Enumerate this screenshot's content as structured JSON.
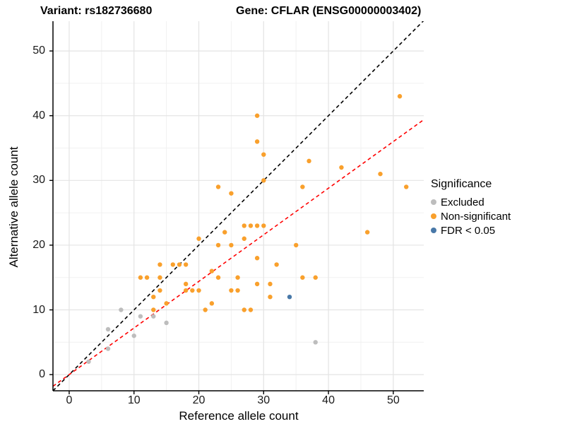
{
  "titles": {
    "variant": "Variant: rs182736680",
    "gene": "Gene: CFLAR (ENSG00000003402)"
  },
  "axes": {
    "x_label": "Reference allele count",
    "y_label": "Alternative allele count"
  },
  "legend": {
    "title": "Significance",
    "items": [
      {
        "label": "Excluded",
        "color": "#BDBDBD"
      },
      {
        "label": "Non-significant",
        "color": "#F9A02C"
      },
      {
        "label": "FDR < 0.05",
        "color": "#4878A8"
      }
    ]
  },
  "chart_data": {
    "type": "scatter",
    "title": "Variant: rs182736680 | Gene: CFLAR (ENSG00000003402)",
    "xlabel": "Reference allele count",
    "ylabel": "Alternative allele count",
    "xlim": [
      -2.5,
      54.7
    ],
    "ylim": [
      -2.5,
      54.6
    ],
    "x_ticks": [
      0,
      10,
      20,
      30,
      40,
      50
    ],
    "y_ticks": [
      0,
      10,
      20,
      30,
      40,
      50
    ],
    "minor_gridlines": [
      5,
      15,
      25,
      35,
      45
    ],
    "grid": true,
    "legend_position": "right",
    "point_radius": 3.2,
    "colors": {
      "major_grid": "#E4E4E4",
      "minor_grid": "#F1F1F1",
      "axis_line": "#000000"
    },
    "series": [
      {
        "name": "Excluded",
        "color": "#BDBDBD",
        "points": [
          [
            3,
            2
          ],
          [
            6,
            4
          ],
          [
            6,
            7
          ],
          [
            8,
            10
          ],
          [
            10,
            6
          ],
          [
            11,
            9
          ],
          [
            13,
            9
          ],
          [
            15,
            8
          ],
          [
            38,
            5
          ]
        ]
      },
      {
        "name": "Non-significant",
        "color": "#F9A02C",
        "points": [
          [
            11,
            15
          ],
          [
            12,
            15
          ],
          [
            13,
            10
          ],
          [
            13,
            12
          ],
          [
            14,
            13
          ],
          [
            14,
            15
          ],
          [
            14,
            17
          ],
          [
            15,
            11
          ],
          [
            16,
            17
          ],
          [
            17,
            17
          ],
          [
            18,
            13
          ],
          [
            18,
            14
          ],
          [
            18,
            17
          ],
          [
            19,
            13
          ],
          [
            20,
            13
          ],
          [
            20,
            21
          ],
          [
            21,
            10
          ],
          [
            22,
            11
          ],
          [
            22,
            16
          ],
          [
            23,
            15
          ],
          [
            23,
            20
          ],
          [
            23,
            29
          ],
          [
            24,
            22
          ],
          [
            25,
            13
          ],
          [
            25,
            20
          ],
          [
            25,
            28
          ],
          [
            26,
            13
          ],
          [
            26,
            15
          ],
          [
            27,
            10
          ],
          [
            27,
            21
          ],
          [
            27,
            23
          ],
          [
            28,
            10
          ],
          [
            28,
            23
          ],
          [
            29,
            14
          ],
          [
            29,
            18
          ],
          [
            29,
            23
          ],
          [
            29,
            36
          ],
          [
            29,
            40
          ],
          [
            30,
            23
          ],
          [
            30,
            30
          ],
          [
            30,
            34
          ],
          [
            31,
            12
          ],
          [
            31,
            14
          ],
          [
            32,
            17
          ],
          [
            35,
            20
          ],
          [
            36,
            15
          ],
          [
            36,
            29
          ],
          [
            37,
            33
          ],
          [
            38,
            15
          ],
          [
            42,
            32
          ],
          [
            46,
            22
          ],
          [
            48,
            31
          ],
          [
            51,
            43
          ],
          [
            52,
            29
          ]
        ]
      },
      {
        "name": "FDR < 0.05",
        "color": "#4878A8",
        "points": [
          [
            34,
            12
          ]
        ]
      }
    ],
    "lines": [
      {
        "name": "identity-line",
        "color": "#000000",
        "style": "dashed",
        "slope": 1,
        "intercept": 0
      },
      {
        "name": "fit-line",
        "color": "#FF0000",
        "style": "dashed",
        "slope": 0.72,
        "intercept": 0
      }
    ]
  }
}
